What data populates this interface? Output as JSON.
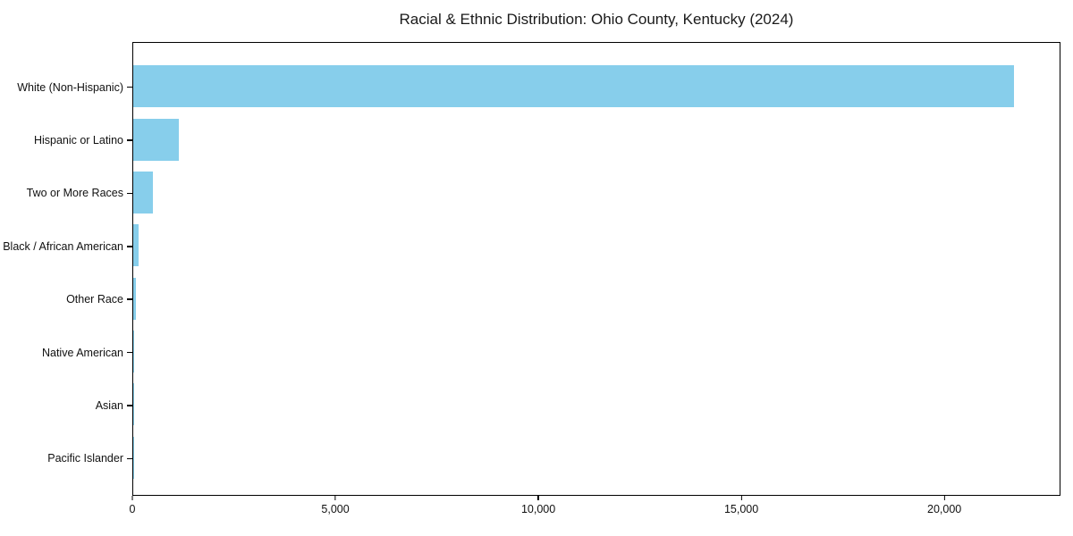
{
  "chart_data": {
    "type": "bar",
    "orientation": "horizontal",
    "title": "Racial & Ethnic Distribution: Ohio County, Kentucky (2024)",
    "categories": [
      "White (Non-Hispanic)",
      "Hispanic or Latino",
      "Two or More Races",
      "Black / African American",
      "Other Race",
      "Native American",
      "Asian",
      "Pacific Islander"
    ],
    "values": [
      21740,
      1120,
      485,
      125,
      70,
      30,
      20,
      5
    ],
    "xlabel": "",
    "ylabel": "",
    "xlim": [
      0,
      22860
    ],
    "x_ticks": [
      0,
      5000,
      10000,
      15000,
      20000
    ],
    "x_tick_labels": [
      "0",
      "5,000",
      "10,000",
      "15,000",
      "20,000"
    ],
    "bar_color": "#87CEEB",
    "frame_color": "#000000",
    "grid": false,
    "legend": null,
    "background_color": "#ffffff"
  }
}
